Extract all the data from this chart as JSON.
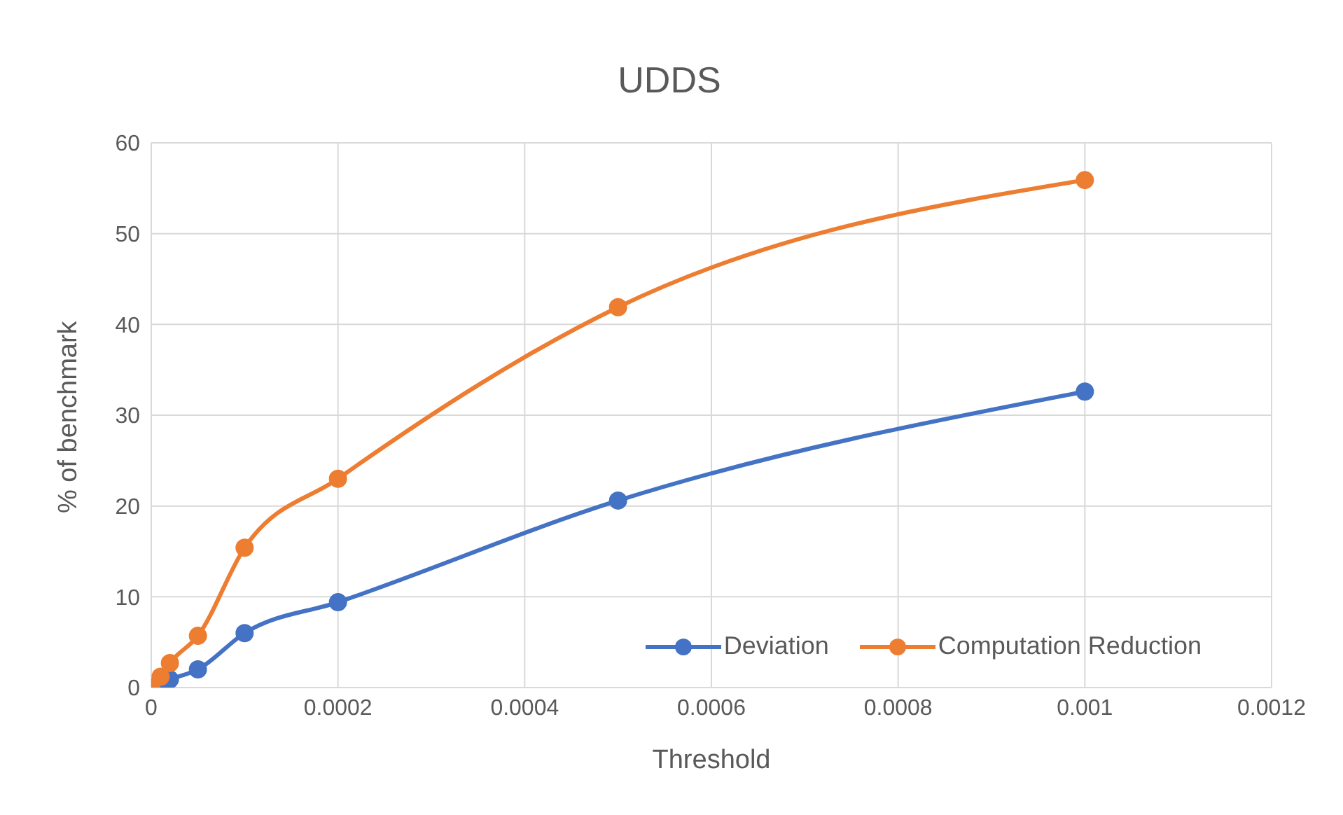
{
  "chart_data": {
    "type": "line",
    "title": "UDDS",
    "xlabel": "Threshold",
    "ylabel": "% of benchmark",
    "x": [
      0,
      1e-05,
      2e-05,
      5e-05,
      0.0001,
      0.0002,
      0.0005,
      0.001
    ],
    "series": [
      {
        "name": "Deviation",
        "color": "#4472c4",
        "values": [
          0,
          0.5,
          0.9,
          2.0,
          6.0,
          9.4,
          20.6,
          32.6
        ]
      },
      {
        "name": "Computation Reduction",
        "color": "#ed7d31",
        "values": [
          0,
          1.2,
          2.7,
          5.7,
          15.4,
          23.0,
          41.9,
          55.9
        ]
      }
    ],
    "xlim": [
      0,
      0.0012
    ],
    "xticks": [
      0,
      0.0002,
      0.0004,
      0.0006,
      0.0008,
      0.001,
      0.0012
    ],
    "ylim": [
      0,
      60
    ],
    "yticks": [
      0,
      10,
      20,
      30,
      40,
      50,
      60
    ],
    "grid": true,
    "legend": "bottom right",
    "marker": "circle",
    "line_style": "solid"
  }
}
